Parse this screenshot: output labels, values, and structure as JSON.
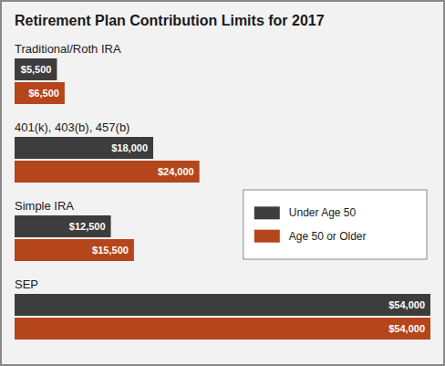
{
  "chart_data": {
    "type": "bar",
    "orientation": "horizontal",
    "title": "Retirement Plan Contribution Limits for 2017",
    "categories": [
      "Traditional/Roth IRA",
      "401(k), 403(b), 457(b)",
      "Simple IRA",
      "SEP"
    ],
    "series": [
      {
        "name": "Under Age 50",
        "color": "#3d3d3d",
        "values": [
          5500,
          18000,
          12500,
          54000
        ],
        "value_labels": [
          "$5,500",
          "$18,000",
          "$12,500",
          "$54,000"
        ]
      },
      {
        "name": "Age 50 or Older",
        "color": "#b5451b",
        "values": [
          6500,
          24000,
          15500,
          54000
        ],
        "value_labels": [
          "$6,500",
          "$24,000",
          "$15,500",
          "$54,000"
        ]
      }
    ],
    "xlim": [
      0,
      54000
    ],
    "data_labels": true,
    "tick_labels": false,
    "grid": false,
    "legend": "right"
  }
}
